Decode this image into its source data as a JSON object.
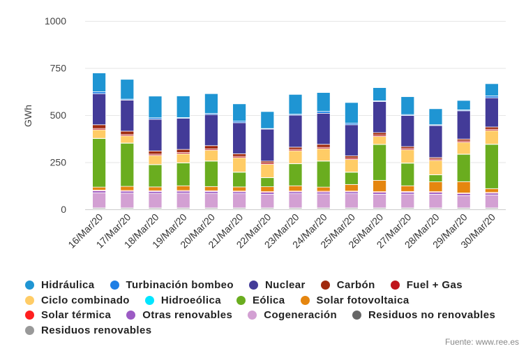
{
  "chart_data": {
    "type": "bar",
    "stacked": true,
    "title": "",
    "xlabel": "",
    "ylabel": "GWh",
    "ylim": [
      0,
      1000
    ],
    "yticks": [
      "0",
      "250",
      "500",
      "750",
      "1000"
    ],
    "grid": true,
    "legend_position": "bottom",
    "categories": [
      "16/Mar/20",
      "17/Mar/20",
      "18/Mar/20",
      "19/Mar/20",
      "20/Mar/20",
      "21/Mar/20",
      "22/Mar/20",
      "23/Mar/20",
      "24/Mar/20",
      "25/Mar/20",
      "26/Mar/20",
      "27/Mar/20",
      "28/Mar/20",
      "29/Mar/20",
      "30/Mar/20"
    ],
    "series": [
      {
        "name": "Residuos renovables",
        "color": "#999999",
        "values": [
          3,
          3,
          3,
          3,
          3,
          3,
          3,
          3,
          3,
          3,
          3,
          3,
          3,
          3,
          3
        ]
      },
      {
        "name": "Residuos no renovables",
        "color": "#666666",
        "values": [
          5,
          5,
          5,
          5,
          5,
          5,
          5,
          5,
          5,
          5,
          5,
          5,
          5,
          5,
          5
        ]
      },
      {
        "name": "Cogeneración",
        "color": "#d3a0d3",
        "values": [
          80,
          78,
          77,
          78,
          77,
          75,
          72,
          75,
          74,
          75,
          72,
          73,
          72,
          65,
          68
        ]
      },
      {
        "name": "Otras renovables",
        "color": "#9c5bc4",
        "values": [
          10,
          10,
          10,
          10,
          10,
          10,
          10,
          10,
          10,
          10,
          10,
          10,
          10,
          10,
          10
        ]
      },
      {
        "name": "Solar térmica",
        "color": "#ff1f1f",
        "values": [
          4,
          4,
          4,
          4,
          4,
          4,
          4,
          4,
          4,
          4,
          4,
          4,
          4,
          4,
          4
        ]
      },
      {
        "name": "Solar fotovoltaica",
        "color": "#e5860f",
        "values": [
          16,
          22,
          20,
          25,
          22,
          22,
          26,
          28,
          22,
          35,
          60,
          30,
          52,
          60,
          20
        ]
      },
      {
        "name": "Eólica",
        "color": "#6aad1f",
        "values": [
          258,
          229,
          118,
          121,
          135,
          78,
          48,
          117,
          138,
          65,
          190,
          120,
          37,
          145,
          235
        ]
      },
      {
        "name": "Hidroeólica",
        "color": "#00e5ff",
        "values": [
          1,
          1,
          1,
          1,
          1,
          1,
          1,
          1,
          1,
          1,
          1,
          1,
          1,
          1,
          1
        ]
      },
      {
        "name": "Ciclo combinado",
        "color": "#ffcc66",
        "values": [
          45,
          38,
          48,
          48,
          57,
          76,
          70,
          68,
          65,
          67,
          42,
          70,
          76,
          63,
          72
        ]
      },
      {
        "name": "Fuel + Gas",
        "color": "#c0151c",
        "values": [
          7,
          7,
          7,
          7,
          7,
          7,
          7,
          7,
          7,
          7,
          7,
          7,
          7,
          7,
          7
        ]
      },
      {
        "name": "Carbón",
        "color": "#a02a0e",
        "values": [
          20,
          18,
          17,
          16,
          17,
          14,
          10,
          12,
          16,
          12,
          13,
          10,
          8,
          10,
          12
        ]
      },
      {
        "name": "Nuclear",
        "color": "#433b98",
        "values": [
          165,
          165,
          168,
          165,
          165,
          165,
          170,
          170,
          165,
          165,
          165,
          165,
          170,
          150,
          155
        ]
      },
      {
        "name": "Turbinación bombeo",
        "color": "#1f7fe5",
        "values": [
          10,
          5,
          8,
          4,
          6,
          8,
          3,
          5,
          10,
          8,
          4,
          5,
          4,
          5,
          10
        ]
      },
      {
        "name": "Hidráulica",
        "color": "#1f95d3",
        "values": [
          100,
          105,
          115,
          115,
          105,
          92,
          90,
          105,
          100,
          110,
          70,
          95,
          85,
          50,
          65
        ]
      }
    ]
  },
  "legend": {
    "rows": [
      [
        "Hidráulica",
        "Turbinación bombeo",
        "Nuclear",
        "Carbón",
        "Fuel + Gas"
      ],
      [
        "Ciclo combinado",
        "Hidroeólica",
        "Eólica",
        "Solar fotovoltaica"
      ],
      [
        "Solar térmica",
        "Otras renovables",
        "Cogeneración",
        "Residuos no renovables"
      ],
      [
        "Residuos renovables"
      ]
    ]
  },
  "source": "Fuente: www.ree.es"
}
